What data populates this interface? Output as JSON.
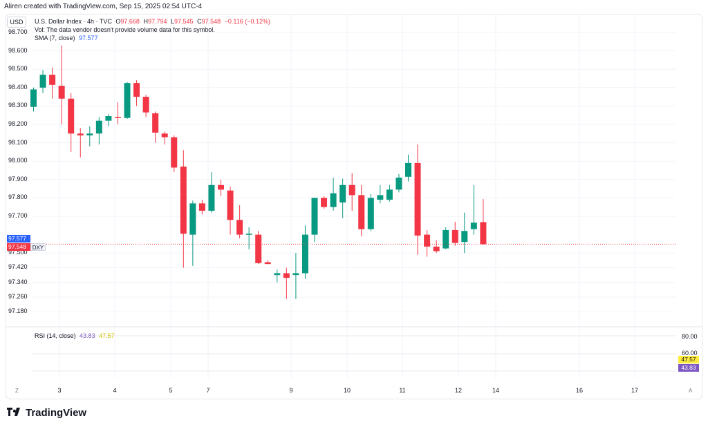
{
  "header": {
    "caption": "Aliren created with TradingView.com, Sep 15, 2025 02:54 UTC-4"
  },
  "legend": {
    "symbol": "U.S. Dollar Index · 4h · TVC",
    "o_label": "O",
    "o_value": "97.668",
    "h_label": "H",
    "h_value": "97.794",
    "l_label": "L",
    "l_value": "97.545",
    "c_label": "C",
    "c_value": "97.548",
    "change": "−0.116 (−0.12%)",
    "vol_note": "Vol: The data vendor doesn't provide volume data for this symbol.",
    "sma_label": "SMA (7, close)",
    "sma_value": "97.577"
  },
  "currency_button": "USD",
  "price_axis": {
    "labels": [
      "98.700",
      "98.600",
      "98.500",
      "98.400",
      "98.300",
      "98.200",
      "98.100",
      "98.000",
      "97.900",
      "97.800",
      "97.700",
      "97.577",
      "97.548",
      "97.500",
      "97.420",
      "97.340",
      "97.260",
      "97.180"
    ],
    "sma_tag": "97.577",
    "last_tag": "97.548",
    "symbol_tag": "DXY"
  },
  "rsi": {
    "label": "RSI (14, close)",
    "value1": "43.83",
    "value2": "47.57",
    "axis": [
      "80.00",
      "60.00"
    ],
    "tag_upper": "47.57",
    "tag_lower": "43.83"
  },
  "time_axis": {
    "labels": [
      "3",
      "4",
      "5",
      "7",
      "9",
      "10",
      "11",
      "12",
      "14",
      "16",
      "17"
    ]
  },
  "footer": {
    "brand": "TradingView",
    "left_icon": "Z",
    "right_icon": "A"
  },
  "colors": {
    "up": "#089981",
    "down": "#f23645",
    "sma": "#2962ff",
    "rsi": "#7e57c2",
    "rsi_ma": "#ffeb3b"
  },
  "chart_data": {
    "type": "candlestick",
    "interval": "4h",
    "candles": [
      {
        "o": 98.295,
        "h": 98.4,
        "l": 98.27,
        "c": 98.39
      },
      {
        "o": 98.4,
        "h": 98.495,
        "l": 98.37,
        "c": 98.47
      },
      {
        "o": 98.47,
        "h": 98.51,
        "l": 98.34,
        "c": 98.415
      },
      {
        "o": 98.41,
        "h": 98.63,
        "l": 98.2,
        "c": 98.34
      },
      {
        "o": 98.34,
        "h": 98.37,
        "l": 98.05,
        "c": 98.15
      },
      {
        "o": 98.15,
        "h": 98.18,
        "l": 98.02,
        "c": 98.14
      },
      {
        "o": 98.14,
        "h": 98.19,
        "l": 98.08,
        "c": 98.15
      },
      {
        "o": 98.15,
        "h": 98.24,
        "l": 98.09,
        "c": 98.22
      },
      {
        "o": 98.22,
        "h": 98.255,
        "l": 98.19,
        "c": 98.245
      },
      {
        "o": 98.24,
        "h": 98.32,
        "l": 98.2,
        "c": 98.235
      },
      {
        "o": 98.235,
        "h": 98.43,
        "l": 98.23,
        "c": 98.425
      },
      {
        "o": 98.425,
        "h": 98.44,
        "l": 98.3,
        "c": 98.35
      },
      {
        "o": 98.35,
        "h": 98.36,
        "l": 98.24,
        "c": 98.265
      },
      {
        "o": 98.26,
        "h": 98.27,
        "l": 98.1,
        "c": 98.155
      },
      {
        "o": 98.15,
        "h": 98.16,
        "l": 98.09,
        "c": 98.13
      },
      {
        "o": 98.13,
        "h": 98.14,
        "l": 97.94,
        "c": 97.965
      },
      {
        "o": 97.97,
        "h": 98.06,
        "l": 97.42,
        "c": 97.605
      },
      {
        "o": 97.6,
        "h": 97.785,
        "l": 97.43,
        "c": 97.77
      },
      {
        "o": 97.77,
        "h": 97.79,
        "l": 97.71,
        "c": 97.73
      },
      {
        "o": 97.73,
        "h": 97.94,
        "l": 97.72,
        "c": 97.87
      },
      {
        "o": 97.87,
        "h": 97.9,
        "l": 97.81,
        "c": 97.845
      },
      {
        "o": 97.84,
        "h": 97.86,
        "l": 97.6,
        "c": 97.68
      },
      {
        "o": 97.68,
        "h": 97.76,
        "l": 97.58,
        "c": 97.6
      },
      {
        "o": 97.6,
        "h": 97.64,
        "l": 97.52,
        "c": 97.605
      },
      {
        "o": 97.6,
        "h": 97.62,
        "l": 97.44,
        "c": 97.445
      },
      {
        "o": 97.45,
        "h": 97.46,
        "l": 97.44,
        "c": 97.44
      },
      {
        "o": 97.38,
        "h": 97.41,
        "l": 97.34,
        "c": 97.39
      },
      {
        "o": 97.39,
        "h": 97.42,
        "l": 97.25,
        "c": 97.365
      },
      {
        "o": 97.38,
        "h": 97.5,
        "l": 97.25,
        "c": 97.39
      },
      {
        "o": 97.39,
        "h": 97.65,
        "l": 97.36,
        "c": 97.6
      },
      {
        "o": 97.6,
        "h": 97.8,
        "l": 97.56,
        "c": 97.8
      },
      {
        "o": 97.8,
        "h": 97.81,
        "l": 97.74,
        "c": 97.75
      },
      {
        "o": 97.75,
        "h": 97.91,
        "l": 97.73,
        "c": 97.825
      },
      {
        "o": 97.775,
        "h": 97.905,
        "l": 97.69,
        "c": 97.87
      },
      {
        "o": 97.87,
        "h": 97.935,
        "l": 97.73,
        "c": 97.815
      },
      {
        "o": 97.815,
        "h": 97.87,
        "l": 97.59,
        "c": 97.63
      },
      {
        "o": 97.63,
        "h": 97.82,
        "l": 97.62,
        "c": 97.8
      },
      {
        "o": 97.79,
        "h": 97.87,
        "l": 97.77,
        "c": 97.815
      },
      {
        "o": 97.79,
        "h": 97.87,
        "l": 97.78,
        "c": 97.845
      },
      {
        "o": 97.845,
        "h": 97.93,
        "l": 97.83,
        "c": 97.91
      },
      {
        "o": 97.915,
        "h": 98.035,
        "l": 97.89,
        "c": 97.99
      },
      {
        "o": 97.99,
        "h": 98.09,
        "l": 97.49,
        "c": 97.595
      },
      {
        "o": 97.6,
        "h": 97.625,
        "l": 97.48,
        "c": 97.535
      },
      {
        "o": 97.535,
        "h": 97.57,
        "l": 97.5,
        "c": 97.51
      },
      {
        "o": 97.525,
        "h": 97.64,
        "l": 97.52,
        "c": 97.625
      },
      {
        "o": 97.625,
        "h": 97.67,
        "l": 97.54,
        "c": 97.555
      },
      {
        "o": 97.56,
        "h": 97.72,
        "l": 97.5,
        "c": 97.62
      },
      {
        "o": 97.63,
        "h": 97.87,
        "l": 97.6,
        "c": 97.665
      },
      {
        "o": 97.668,
        "h": 97.794,
        "l": 97.545,
        "c": 97.548
      }
    ],
    "sma": {
      "name": "SMA (7, close)",
      "last": 97.577
    },
    "rsi": {
      "name": "RSI (14, close)",
      "last": 43.83,
      "ma": 47.57,
      "levels": [
        80,
        60
      ]
    },
    "x_ticks": [
      "3",
      "4",
      "5",
      "7",
      "9",
      "10",
      "11",
      "12",
      "14",
      "16",
      "17"
    ],
    "y_ticks": [
      98.7,
      98.6,
      98.5,
      98.4,
      98.3,
      98.2,
      98.1,
      98.0,
      97.9,
      97.8,
      97.7,
      97.5,
      97.42,
      97.34,
      97.26,
      97.18
    ]
  }
}
